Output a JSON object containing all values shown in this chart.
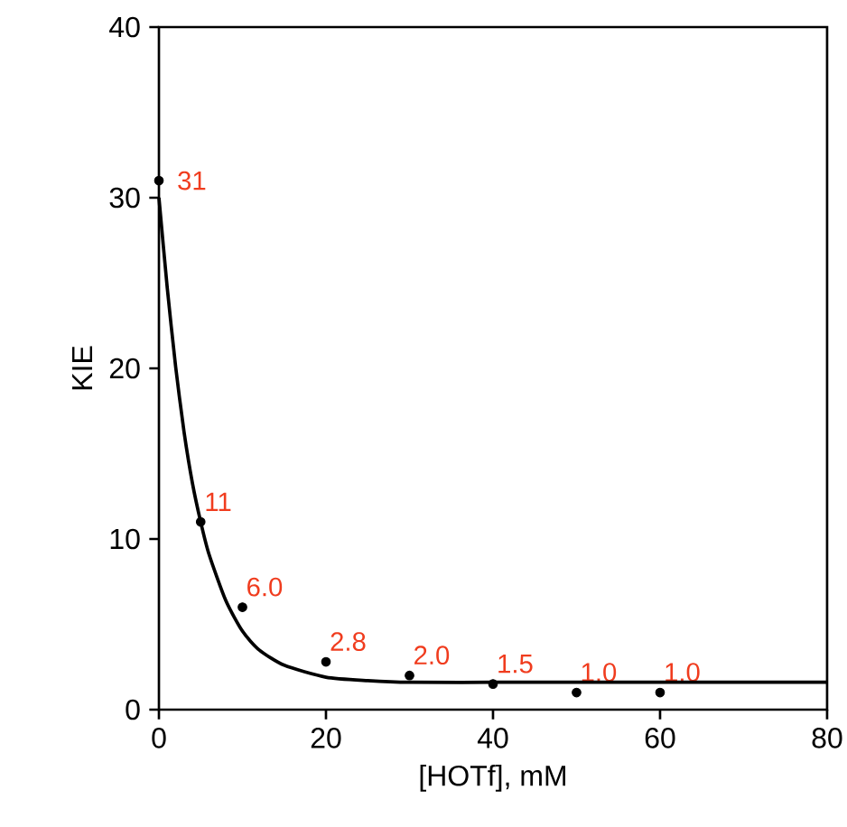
{
  "chart_data": {
    "type": "scatter",
    "xlabel": "[HOTf], mM",
    "ylabel": "KIE",
    "xlim": [
      0,
      80
    ],
    "ylim": [
      0,
      40
    ],
    "xticks": [
      0,
      20,
      40,
      60,
      80
    ],
    "yticks": [
      0,
      10,
      20,
      30,
      40
    ],
    "series": [
      {
        "type": "scatter",
        "color": "#000000",
        "marker": "circle",
        "x": [
          0,
          5,
          10,
          20,
          30,
          40,
          50,
          60
        ],
        "values": [
          31,
          11,
          6.0,
          2.8,
          2.0,
          1.5,
          1.0,
          1.0
        ],
        "value_labels": [
          "31",
          "11",
          "6.0",
          "2.8",
          "2.0",
          "1.5",
          "1.0",
          "1.0"
        ]
      },
      {
        "type": "line",
        "color": "#000000",
        "line_style": "solid",
        "x": [
          0,
          1,
          2,
          3,
          4,
          5,
          6,
          8,
          10,
          12,
          15,
          20,
          25,
          30,
          40,
          60,
          80
        ],
        "values": [
          30,
          24.7,
          20.1,
          16.3,
          13.3,
          11.0,
          9.1,
          6.4,
          4.6,
          3.5,
          2.6,
          1.9,
          1.7,
          1.6,
          1.6,
          1.6,
          1.6
        ]
      }
    ]
  }
}
